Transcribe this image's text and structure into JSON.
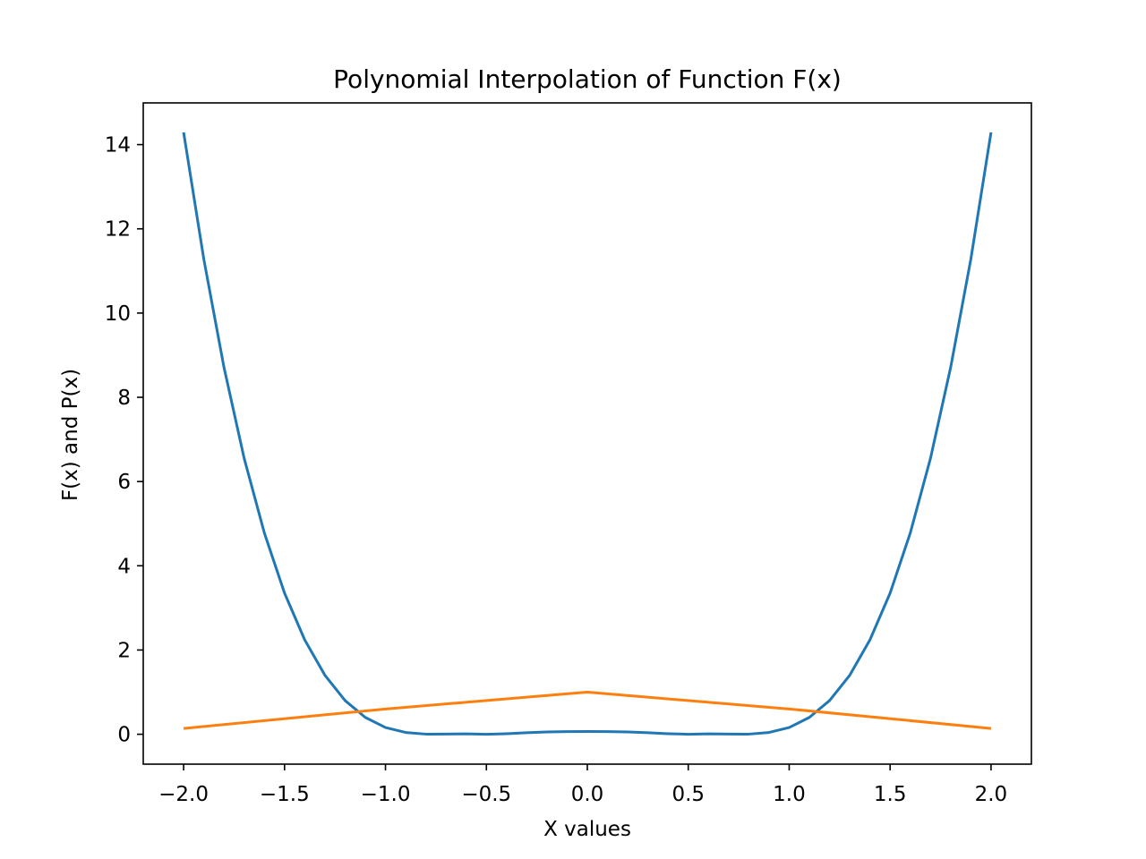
{
  "chart_data": {
    "type": "line",
    "title": "Polynomial Interpolation of Function F(x)",
    "xlabel": "X values",
    "ylabel": "F(x) and P(x)",
    "xlim": [
      -2.2,
      2.2
    ],
    "ylim": [
      -0.71,
      14.99
    ],
    "xticks": [
      -2.0,
      -1.5,
      -1.0,
      -0.5,
      0.0,
      0.5,
      1.0,
      1.5,
      2.0
    ],
    "xtick_labels": [
      "−2.0",
      "−1.5",
      "−1.0",
      "−0.5",
      "0.0",
      "0.5",
      "1.0",
      "1.5",
      "2.0"
    ],
    "yticks": [
      0,
      2,
      4,
      6,
      8,
      10,
      12,
      14
    ],
    "ytick_labels": [
      "0",
      "2",
      "4",
      "6",
      "8",
      "10",
      "12",
      "14"
    ],
    "grid": false,
    "legend": "none",
    "series": [
      {
        "color": "#1f77b4",
        "x": [
          -2.0,
          -1.9,
          -1.8,
          -1.7,
          -1.6,
          -1.5,
          -1.4,
          -1.3,
          -1.2,
          -1.1,
          -1.0,
          -0.9,
          -0.8,
          -0.7,
          -0.6,
          -0.5,
          -0.4,
          -0.3,
          -0.2,
          -0.1,
          0.0,
          0.1,
          0.2,
          0.3,
          0.4,
          0.5,
          0.6,
          0.7,
          0.8,
          0.9,
          1.0,
          1.1,
          1.2,
          1.3,
          1.4,
          1.5,
          1.6,
          1.7,
          1.8,
          1.9,
          2.0
        ],
        "y": [
          14.29,
          11.28,
          8.71,
          6.55,
          4.78,
          3.35,
          2.24,
          1.4,
          0.8,
          0.4,
          0.16,
          0.042,
          0.003,
          0.004,
          0.009,
          0.0,
          0.013,
          0.036,
          0.055,
          0.064,
          0.065,
          0.064,
          0.055,
          0.036,
          0.013,
          0.0,
          0.009,
          0.004,
          0.003,
          0.042,
          0.16,
          0.4,
          0.8,
          1.4,
          2.24,
          3.35,
          4.78,
          6.55,
          8.71,
          11.28,
          14.29
        ]
      },
      {
        "color": "#ff7f0e",
        "x": [
          -2.0,
          -1.0,
          0.0,
          1.0,
          2.0
        ],
        "y": [
          0.138,
          0.6,
          1.0,
          0.6,
          0.138
        ]
      }
    ]
  }
}
